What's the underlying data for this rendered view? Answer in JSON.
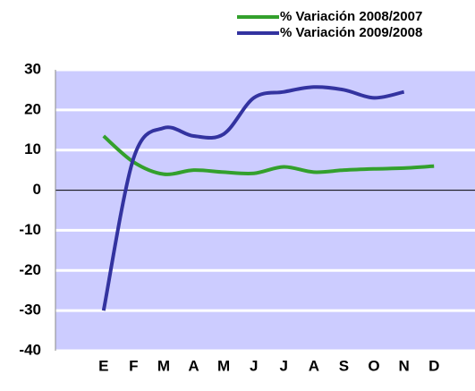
{
  "chart_data": {
    "type": "line",
    "categories": [
      "E",
      "F",
      "M",
      "A",
      "M",
      "J",
      "J",
      "A",
      "S",
      "O",
      "N",
      "D"
    ],
    "series": [
      {
        "name": "% Variación 2008/2007",
        "color": "#33a02c",
        "values": [
          13.5,
          7,
          4,
          5,
          4.5,
          4.2,
          5.8,
          4.5,
          5.0,
          5.3,
          5.5,
          6.0
        ]
      },
      {
        "name": "% Variación 2009/2008",
        "color": "#3333a0",
        "values": [
          -30,
          8,
          15.5,
          13.5,
          14,
          23,
          24.5,
          25.7,
          25,
          23,
          24.5,
          null
        ]
      }
    ],
    "ylim": [
      -40,
      30
    ],
    "yticks": [
      -40,
      -30,
      -20,
      -10,
      0,
      10,
      20,
      30
    ],
    "grid": true,
    "background": "#ccccff",
    "legend": "top-right"
  }
}
